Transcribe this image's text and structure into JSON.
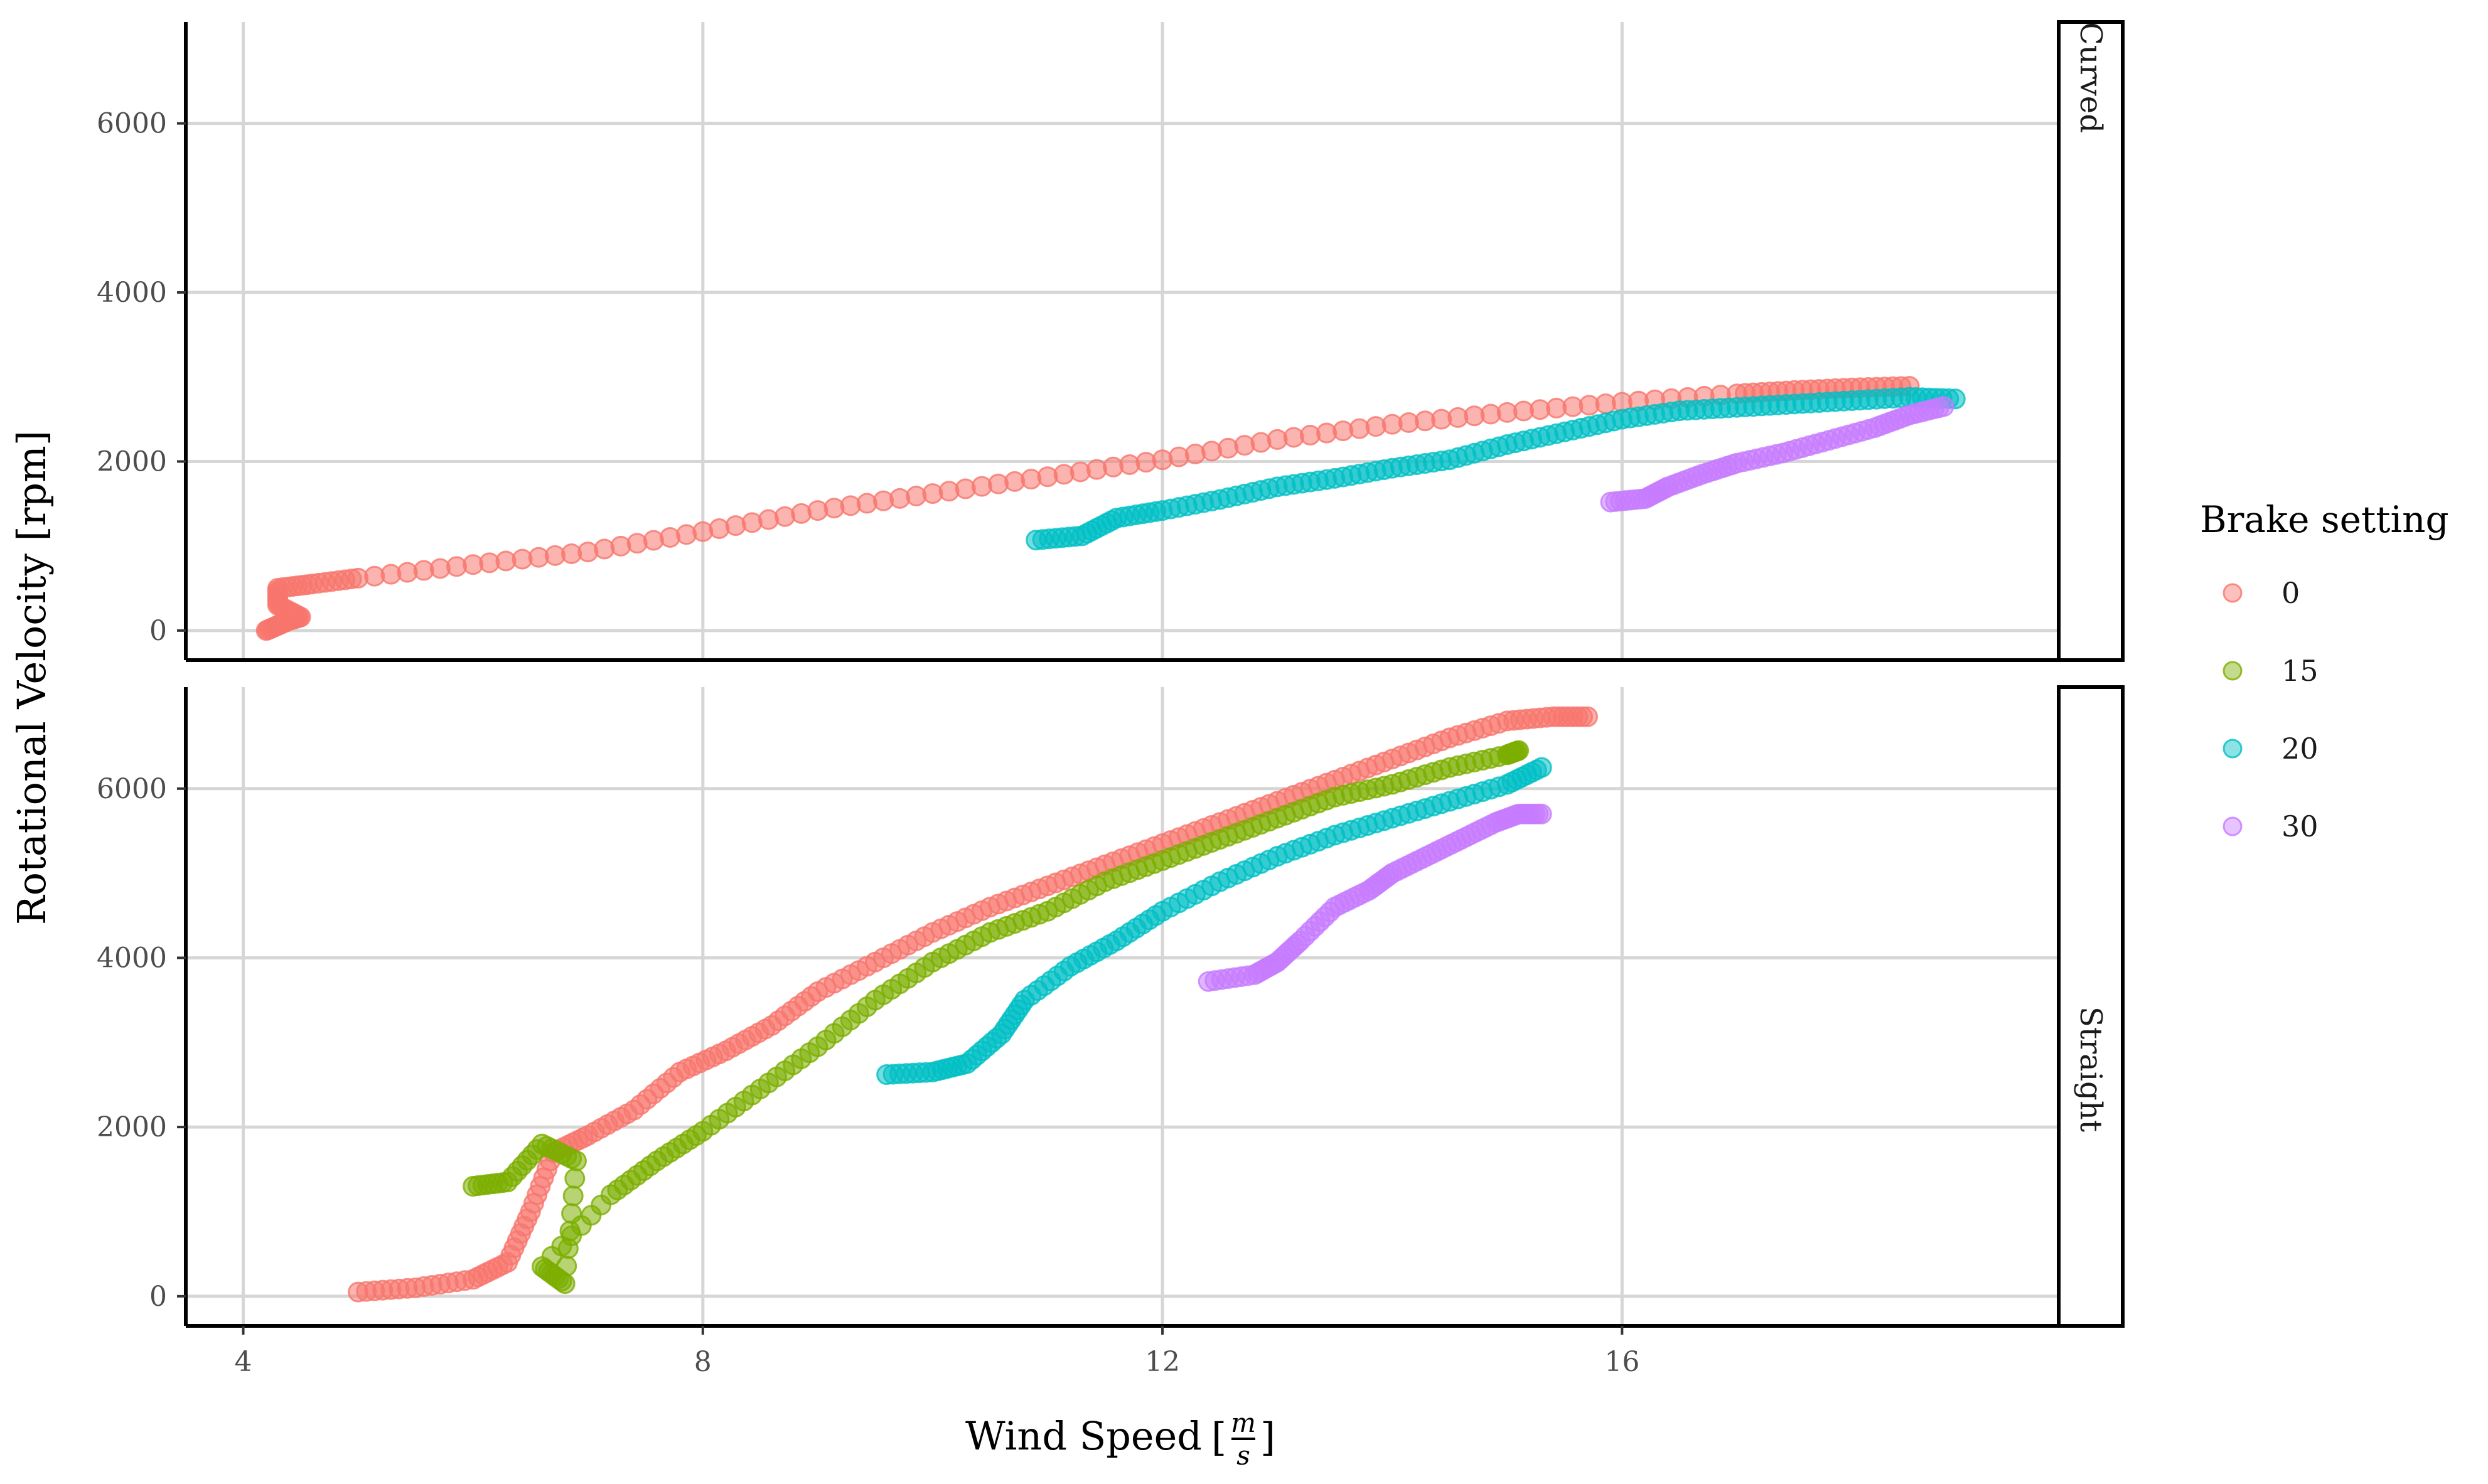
{
  "chart_data": {
    "type": "scatter",
    "facet_by": "blade",
    "xlabel": "Wind Speed",
    "xlabel_unit": {
      "numerator": "m",
      "denominator": "s"
    },
    "ylabel": "Rotational Velocity [rpm]",
    "xlim": [
      3.5,
      19.8
    ],
    "ylim": [
      -350,
      7200
    ],
    "x_ticks": [
      4,
      8,
      12,
      16
    ],
    "y_ticks": [
      0,
      2000,
      4000,
      6000
    ],
    "grid": true,
    "legend": {
      "title": "Brake setting",
      "position": "right",
      "entries": [
        {
          "label": "0",
          "color": "#F8766D"
        },
        {
          "label": "15",
          "color": "#7CAE00"
        },
        {
          "label": "20",
          "color": "#00BFC4"
        },
        {
          "label": "30",
          "color": "#C77CFF"
        }
      ]
    },
    "panels": [
      {
        "label": "Curved",
        "series": [
          {
            "name": "0",
            "color": "#F8766D",
            "points": [
              [
                4.2,
                0
              ],
              [
                4.3,
                60
              ],
              [
                4.4,
                120
              ],
              [
                4.5,
                160
              ],
              [
                4.3,
                300
              ],
              [
                4.3,
                500
              ],
              [
                4.6,
                550
              ],
              [
                5,
                620
              ],
              [
                6,
                780
              ],
              [
                7,
                930
              ],
              [
                8,
                1170
              ],
              [
                9,
                1420
              ],
              [
                10,
                1620
              ],
              [
                11,
                1820
              ],
              [
                12,
                2020
              ],
              [
                13,
                2260
              ],
              [
                14,
                2440
              ],
              [
                15,
                2580
              ],
              [
                16,
                2700
              ],
              [
                17,
                2800
              ],
              [
                17.5,
                2840
              ],
              [
                18,
                2870
              ],
              [
                18.5,
                2890
              ]
            ]
          },
          {
            "name": "20",
            "color": "#00BFC4",
            "points": [
              [
                10.9,
                1070
              ],
              [
                11.3,
                1120
              ],
              [
                11.6,
                1330
              ],
              [
                12,
                1420
              ],
              [
                12.5,
                1550
              ],
              [
                13,
                1700
              ],
              [
                13.5,
                1800
              ],
              [
                14,
                1920
              ],
              [
                14.5,
                2020
              ],
              [
                15,
                2200
              ],
              [
                15.5,
                2350
              ],
              [
                16,
                2500
              ],
              [
                16.5,
                2600
              ],
              [
                17,
                2640
              ],
              [
                17.5,
                2680
              ],
              [
                18,
                2720
              ],
              [
                18.5,
                2760
              ],
              [
                18.9,
                2740
              ]
            ]
          },
          {
            "name": "30",
            "color": "#C77CFF",
            "points": [
              [
                15.9,
                1520
              ],
              [
                16.2,
                1560
              ],
              [
                16.4,
                1700
              ],
              [
                16.7,
                1850
              ],
              [
                17,
                1980
              ],
              [
                17.4,
                2100
              ],
              [
                17.8,
                2250
              ],
              [
                18.2,
                2400
              ],
              [
                18.5,
                2550
              ],
              [
                18.8,
                2650
              ]
            ]
          }
        ]
      },
      {
        "label": "Straight",
        "series": [
          {
            "name": "0",
            "color": "#F8766D",
            "points": [
              [
                5,
                50
              ],
              [
                5.5,
                100
              ],
              [
                6,
                200
              ],
              [
                6.3,
                400
              ],
              [
                6.5,
                1000
              ],
              [
                6.7,
                1700
              ],
              [
                7,
                1900
              ],
              [
                7.4,
                2200
              ],
              [
                7.8,
                2650
              ],
              [
                8.2,
                2900
              ],
              [
                8.6,
                3200
              ],
              [
                9,
                3600
              ],
              [
                9.5,
                3950
              ],
              [
                10,
                4300
              ],
              [
                10.5,
                4600
              ],
              [
                11,
                4850
              ],
              [
                11.5,
                5100
              ],
              [
                12,
                5350
              ],
              [
                12.5,
                5600
              ],
              [
                13,
                5850
              ],
              [
                13.5,
                6100
              ],
              [
                14,
                6350
              ],
              [
                14.5,
                6600
              ],
              [
                15,
                6800
              ],
              [
                15.4,
                6850
              ],
              [
                15.7,
                6850
              ]
            ]
          },
          {
            "name": "15",
            "color": "#7CAE00",
            "points": [
              [
                6,
                1300
              ],
              [
                6.3,
                1350
              ],
              [
                6.6,
                1800
              ],
              [
                6.9,
                1600
              ],
              [
                6.8,
                150
              ],
              [
                6.6,
                350
              ],
              [
                7.2,
                1200
              ],
              [
                7.6,
                1600
              ],
              [
                8,
                1950
              ],
              [
                8.5,
                2450
              ],
              [
                9,
                2950
              ],
              [
                9.5,
                3500
              ],
              [
                10,
                3950
              ],
              [
                10.5,
                4300
              ],
              [
                11,
                4550
              ],
              [
                11.5,
                4900
              ],
              [
                12,
                5150
              ],
              [
                12.5,
                5400
              ],
              [
                13,
                5650
              ],
              [
                13.5,
                5900
              ],
              [
                14,
                6050
              ],
              [
                14.5,
                6250
              ],
              [
                15,
                6400
              ],
              [
                15.1,
                6450
              ]
            ]
          },
          {
            "name": "20",
            "color": "#00BFC4",
            "points": [
              [
                9.6,
                2620
              ],
              [
                10,
                2650
              ],
              [
                10.3,
                2750
              ],
              [
                10.6,
                3100
              ],
              [
                10.8,
                3500
              ],
              [
                11.2,
                3900
              ],
              [
                11.6,
                4200
              ],
              [
                12,
                4550
              ],
              [
                12.5,
                4900
              ],
              [
                13,
                5200
              ],
              [
                13.5,
                5450
              ],
              [
                14,
                5650
              ],
              [
                14.5,
                5850
              ],
              [
                15,
                6050
              ],
              [
                15.3,
                6250
              ]
            ]
          },
          {
            "name": "30",
            "color": "#C77CFF",
            "points": [
              [
                12.4,
                3720
              ],
              [
                12.8,
                3800
              ],
              [
                13,
                3950
              ],
              [
                13.2,
                4200
              ],
              [
                13.5,
                4600
              ],
              [
                13.8,
                4800
              ],
              [
                14,
                5000
              ],
              [
                14.3,
                5200
              ],
              [
                14.6,
                5400
              ],
              [
                14.9,
                5600
              ],
              [
                15.1,
                5700
              ],
              [
                15.3,
                5700
              ]
            ]
          }
        ]
      }
    ]
  }
}
